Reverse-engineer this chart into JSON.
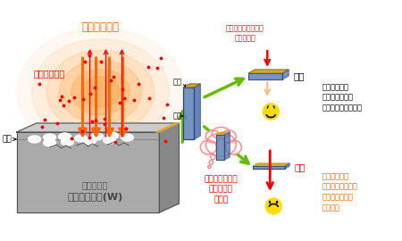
{
  "bg_color": "#ffffff",
  "plasma_color": "#FFA040",
  "plasma_text": "高温プラズマ",
  "plasma_particles_text": "プラズマ粒子",
  "tungsten_text": "タングステン(W)",
  "damage_text": "損傷や欠陥",
  "surface_text_left": "表面",
  "surface_text_center": "表面",
  "section_text": "断面",
  "tem_label": "透過型電子顕微鏡の\n電子ビーム",
  "thick_label": "厚い",
  "thin_label": "薄い",
  "nano_text": "「ナノスケール\n彫刻技術」\nを使う",
  "bad_desc": "電子ビームが\n透過し難いので\n分解能が低い．．．",
  "good_desc": "電子ビームが\n透過しやすいので\n高分解能観察が\nできる！",
  "arrow_orange": "#FF6600",
  "arrow_green": "#66BB00",
  "arrow_red": "#EE0000",
  "text_red": "#FF0000",
  "text_orange": "#FF6600",
  "text_black": "#000000",
  "box_top_color": "#CCCCCC",
  "box_front_color": "#AAAAAA",
  "box_side_color": "#888888",
  "sample_blue_front": "#6688BB",
  "sample_blue_side": "#4466AA",
  "sample_gold": "#CCAA33"
}
